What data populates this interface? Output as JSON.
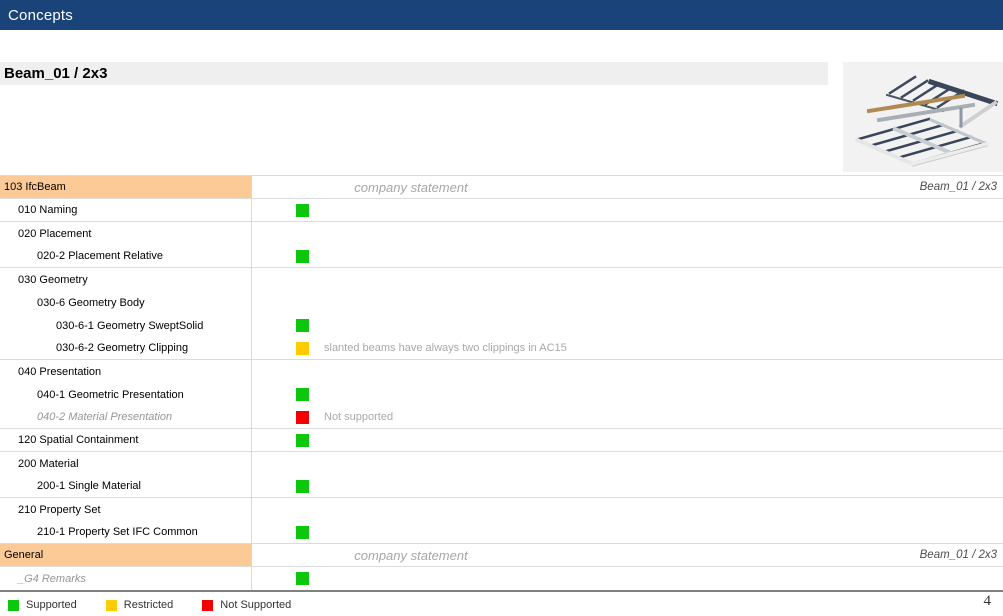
{
  "page": {
    "header_title": "Concepts",
    "section_title": "Beam_01 / 2x3",
    "page_number": "4"
  },
  "colors": {
    "top_bar": "#1A4379",
    "concept_header_bg": "#FCCA97",
    "supported": "#0DC70D",
    "restricted": "#FFCC00",
    "not_supported": "#F40000"
  },
  "icons": {
    "beam_preview": "beam-framing-3d-icon",
    "status_supported": "green-square-icon",
    "status_restricted": "yellow-square-icon",
    "status_not_supported": "red-square-icon"
  },
  "table": {
    "statement_header": "company statement",
    "model_header": "Beam_01 / 2x3",
    "rows": [
      {
        "type": "header",
        "label": "103 IfcBeam"
      },
      {
        "type": "concept",
        "label": "010 Naming",
        "indent": 1,
        "status": "supported",
        "section_end": true
      },
      {
        "type": "concept",
        "label": "020 Placement",
        "indent": 1
      },
      {
        "type": "concept",
        "label": "020-2 Placement Relative",
        "indent": 2,
        "status": "supported",
        "section_end": true
      },
      {
        "type": "concept",
        "label": "030 Geometry",
        "indent": 1
      },
      {
        "type": "concept",
        "label": "030-6 Geometry Body",
        "indent": 2
      },
      {
        "type": "concept",
        "label": "030-6-1 Geometry SweptSolid",
        "indent": 3,
        "status": "supported"
      },
      {
        "type": "concept",
        "label": "030-6-2 Geometry Clipping",
        "indent": 3,
        "status": "restricted",
        "comment": "slanted beams have always two clippings in AC15",
        "section_end": true
      },
      {
        "type": "concept",
        "label": "040 Presentation",
        "indent": 1
      },
      {
        "type": "concept",
        "label": "040-1 Geometric Presentation",
        "indent": 2,
        "status": "supported"
      },
      {
        "type": "concept",
        "label": "040-2 Material Presentation",
        "indent": 2,
        "status": "not_supported",
        "comment": "Not supported",
        "muted": true,
        "section_end": true
      },
      {
        "type": "concept",
        "label": "120 Spatial Containment",
        "indent": 1,
        "status": "supported",
        "section_end": true
      },
      {
        "type": "concept",
        "label": "200 Material",
        "indent": 1
      },
      {
        "type": "concept",
        "label": "200-1 Single Material",
        "indent": 2,
        "status": "supported",
        "section_end": true
      },
      {
        "type": "concept",
        "label": "210 Property Set",
        "indent": 1
      },
      {
        "type": "concept",
        "label": "210-1 Property Set IFC Common",
        "indent": 2,
        "status": "supported",
        "section_end": true
      },
      {
        "type": "header",
        "label": "General"
      },
      {
        "type": "concept",
        "label": "_G4 Remarks",
        "indent": 1,
        "status": "supported",
        "muted": true
      }
    ]
  },
  "legend": {
    "items": [
      {
        "label": "Supported",
        "status": "supported"
      },
      {
        "label": "Restricted",
        "status": "restricted"
      },
      {
        "label": "Not Supported",
        "status": "not_supported"
      }
    ]
  }
}
